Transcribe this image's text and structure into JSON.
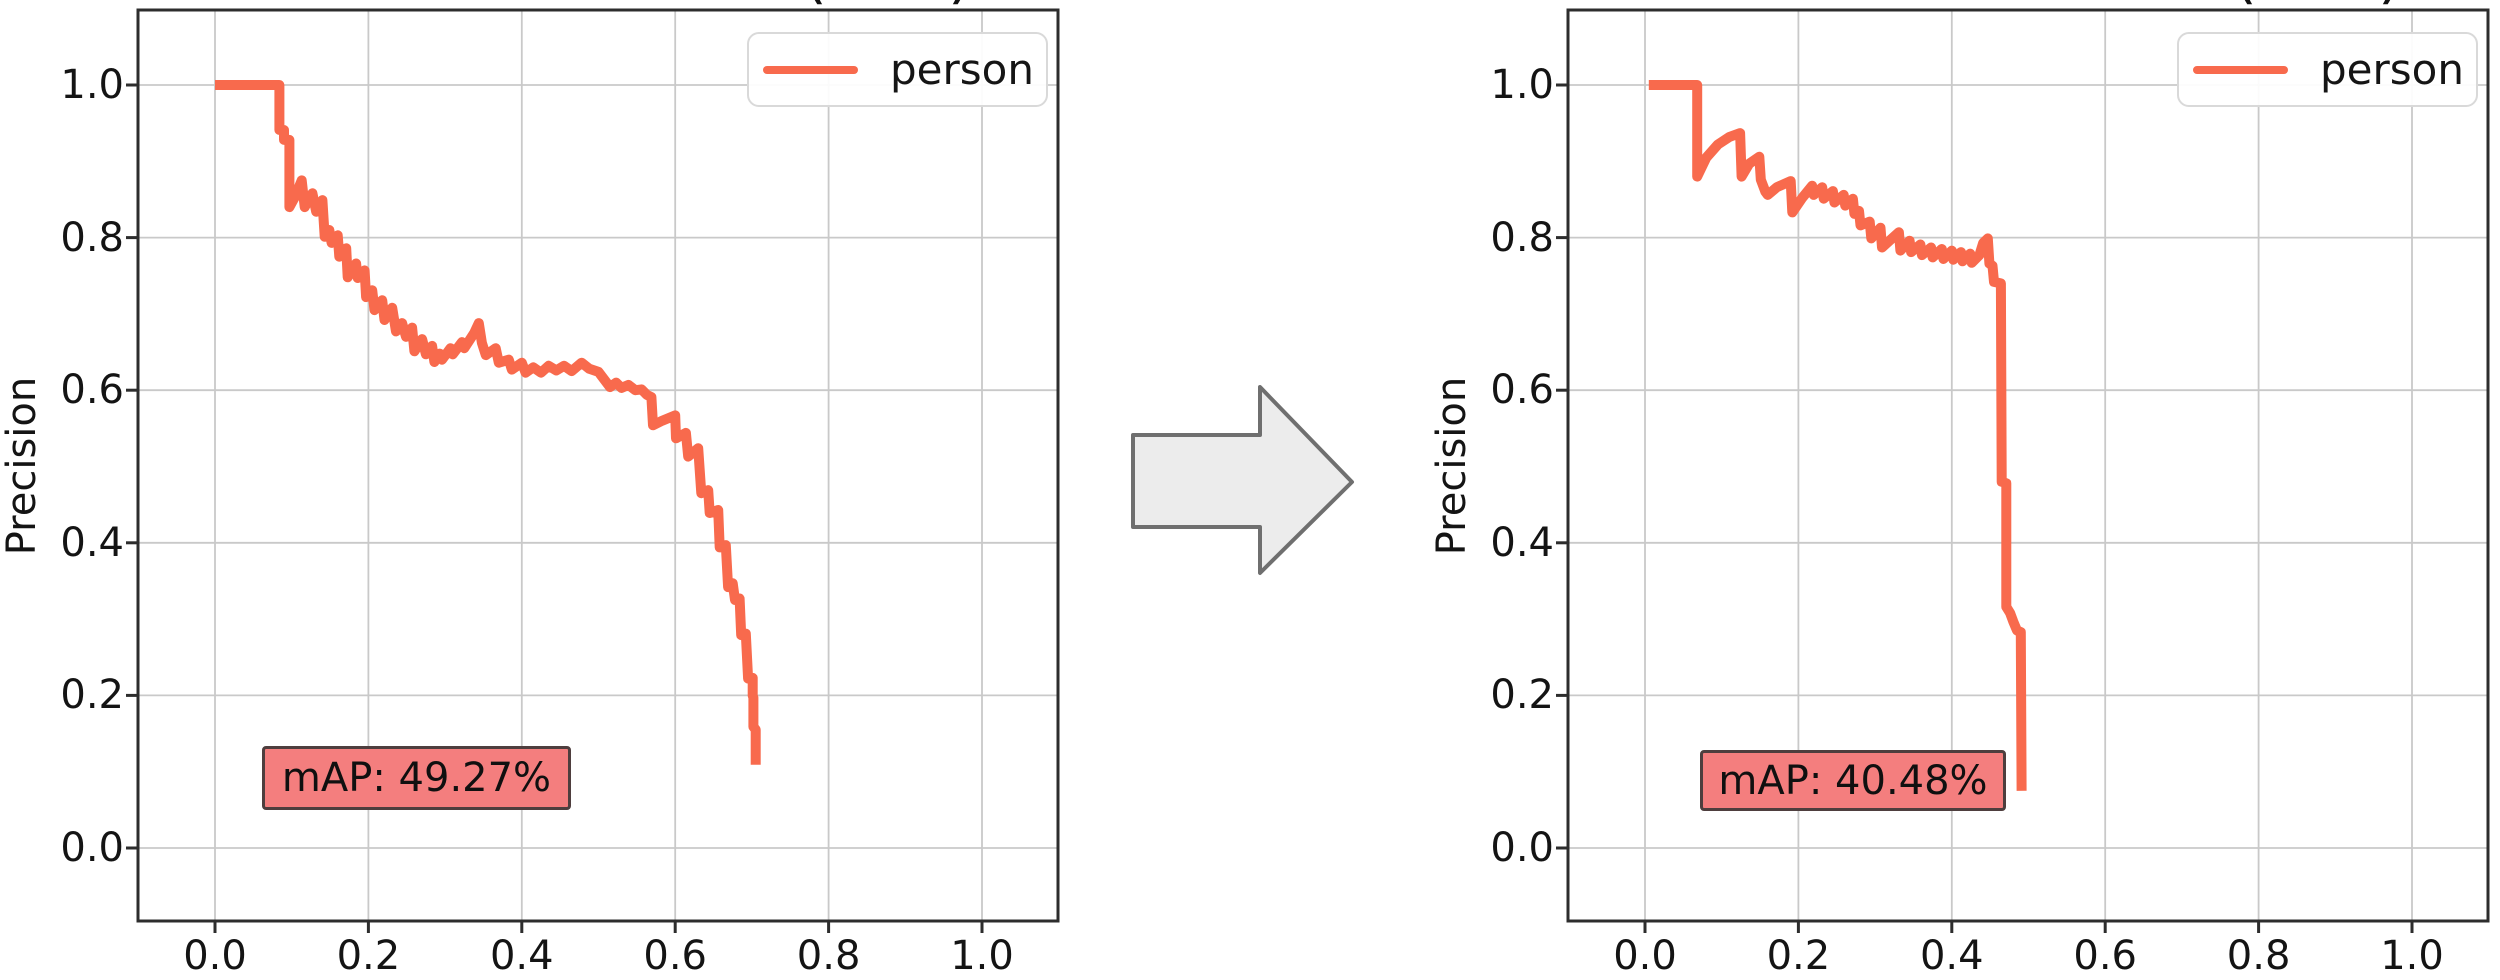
{
  "page": {
    "background": "#ffffff"
  },
  "arrow": {
    "description": "right-arrow",
    "fill": "#ececec",
    "stroke": "#6f6f6f"
  },
  "chart_data": [
    {
      "type": "line",
      "side": "left",
      "title_visible_fragments": [
        "(",
        ")"
      ],
      "xlabel": "",
      "ylabel": "Precision",
      "x_ticks": [
        "0.0",
        "0.2",
        "0.4",
        "0.6",
        "0.8",
        "1.0"
      ],
      "y_ticks": [
        "0.0",
        "0.2",
        "0.4",
        "0.6",
        "0.8",
        "1.0"
      ],
      "xlim": [
        -0.1,
        1.1
      ],
      "ylim": [
        -0.1,
        1.1
      ],
      "grid": true,
      "legend": {
        "position": "upper right",
        "entries": [
          "person"
        ]
      },
      "annotation": {
        "text": "mAP: 49.27%",
        "facecolor": "#f47e7e"
      },
      "series": [
        {
          "name": "person",
          "color": "#f86a4d",
          "points": [
            [
              0.0,
              1.0
            ],
            [
              0.084,
              1.0
            ],
            [
              0.084,
              0.941
            ],
            [
              0.09,
              0.941
            ],
            [
              0.09,
              0.928
            ],
            [
              0.097,
              0.928
            ],
            [
              0.097,
              0.84
            ],
            [
              0.104,
              0.853
            ],
            [
              0.113,
              0.875
            ],
            [
              0.117,
              0.84
            ],
            [
              0.127,
              0.858
            ],
            [
              0.132,
              0.834
            ],
            [
              0.14,
              0.849
            ],
            [
              0.143,
              0.801
            ],
            [
              0.149,
              0.81
            ],
            [
              0.152,
              0.793
            ],
            [
              0.16,
              0.803
            ],
            [
              0.162,
              0.775
            ],
            [
              0.171,
              0.786
            ],
            [
              0.173,
              0.748
            ],
            [
              0.184,
              0.766
            ],
            [
              0.186,
              0.747
            ],
            [
              0.195,
              0.757
            ],
            [
              0.197,
              0.722
            ],
            [
              0.205,
              0.731
            ],
            [
              0.208,
              0.705
            ],
            [
              0.218,
              0.718
            ],
            [
              0.221,
              0.692
            ],
            [
              0.231,
              0.708
            ],
            [
              0.236,
              0.677
            ],
            [
              0.244,
              0.688
            ],
            [
              0.249,
              0.67
            ],
            [
              0.257,
              0.682
            ],
            [
              0.26,
              0.651
            ],
            [
              0.27,
              0.667
            ],
            [
              0.275,
              0.647
            ],
            [
              0.283,
              0.658
            ],
            [
              0.286,
              0.637
            ],
            [
              0.293,
              0.648
            ],
            [
              0.296,
              0.64
            ],
            [
              0.307,
              0.655
            ],
            [
              0.31,
              0.647
            ],
            [
              0.322,
              0.663
            ],
            [
              0.325,
              0.655
            ],
            [
              0.338,
              0.675
            ],
            [
              0.344,
              0.688
            ],
            [
              0.348,
              0.662
            ],
            [
              0.353,
              0.646
            ],
            [
              0.366,
              0.655
            ],
            [
              0.37,
              0.636
            ],
            [
              0.383,
              0.64
            ],
            [
              0.387,
              0.627
            ],
            [
              0.4,
              0.636
            ],
            [
              0.405,
              0.623
            ],
            [
              0.415,
              0.63
            ],
            [
              0.425,
              0.623
            ],
            [
              0.435,
              0.632
            ],
            [
              0.445,
              0.626
            ],
            [
              0.455,
              0.632
            ],
            [
              0.465,
              0.625
            ],
            [
              0.478,
              0.636
            ],
            [
              0.488,
              0.628
            ],
            [
              0.5,
              0.624
            ],
            [
              0.515,
              0.604
            ],
            [
              0.523,
              0.61
            ],
            [
              0.53,
              0.603
            ],
            [
              0.539,
              0.607
            ],
            [
              0.548,
              0.6
            ],
            [
              0.556,
              0.601
            ],
            [
              0.563,
              0.594
            ],
            [
              0.569,
              0.591
            ],
            [
              0.571,
              0.554
            ],
            [
              0.583,
              0.56
            ],
            [
              0.6,
              0.567
            ],
            [
              0.601,
              0.537
            ],
            [
              0.614,
              0.544
            ],
            [
              0.617,
              0.513
            ],
            [
              0.63,
              0.524
            ],
            [
              0.634,
              0.465
            ],
            [
              0.643,
              0.469
            ],
            [
              0.645,
              0.439
            ],
            [
              0.656,
              0.443
            ],
            [
              0.658,
              0.394
            ],
            [
              0.666,
              0.397
            ],
            [
              0.669,
              0.342
            ],
            [
              0.675,
              0.347
            ],
            [
              0.678,
              0.325
            ],
            [
              0.684,
              0.327
            ],
            [
              0.686,
              0.279
            ],
            [
              0.692,
              0.281
            ],
            [
              0.695,
              0.222
            ],
            [
              0.701,
              0.223
            ],
            [
              0.701,
              0.2
            ],
            [
              0.702,
              0.197
            ],
            [
              0.702,
              0.159
            ],
            [
              0.705,
              0.155
            ],
            [
              0.705,
              0.109
            ]
          ]
        }
      ]
    },
    {
      "type": "line",
      "side": "right",
      "title_visible_fragments": [
        "(",
        ")"
      ],
      "xlabel": "",
      "ylabel": "Precision",
      "x_ticks": [
        "0.0",
        "0.2",
        "0.4",
        "0.6",
        "0.8",
        "1.0"
      ],
      "y_ticks": [
        "0.0",
        "0.2",
        "0.4",
        "0.6",
        "0.8",
        "1.0"
      ],
      "xlim": [
        -0.1,
        1.1
      ],
      "ylim": [
        -0.1,
        1.1
      ],
      "grid": true,
      "legend": {
        "position": "upper right",
        "entries": [
          "person"
        ]
      },
      "annotation": {
        "text": "mAP: 40.48%",
        "facecolor": "#f47e7e"
      },
      "series": [
        {
          "name": "person",
          "color": "#f86a4d",
          "points": [
            [
              0.005,
              1.0
            ],
            [
              0.068,
              1.0
            ],
            [
              0.068,
              0.88
            ],
            [
              0.08,
              0.905
            ],
            [
              0.095,
              0.922
            ],
            [
              0.11,
              0.932
            ],
            [
              0.124,
              0.937
            ],
            [
              0.126,
              0.88
            ],
            [
              0.136,
              0.897
            ],
            [
              0.149,
              0.906
            ],
            [
              0.151,
              0.876
            ],
            [
              0.157,
              0.86
            ],
            [
              0.16,
              0.856
            ],
            [
              0.172,
              0.866
            ],
            [
              0.19,
              0.874
            ],
            [
              0.192,
              0.833
            ],
            [
              0.205,
              0.852
            ],
            [
              0.218,
              0.868
            ],
            [
              0.22,
              0.856
            ],
            [
              0.231,
              0.866
            ],
            [
              0.233,
              0.851
            ],
            [
              0.245,
              0.861
            ],
            [
              0.247,
              0.846
            ],
            [
              0.259,
              0.856
            ],
            [
              0.261,
              0.842
            ],
            [
              0.271,
              0.851
            ],
            [
              0.273,
              0.831
            ],
            [
              0.279,
              0.835
            ],
            [
              0.281,
              0.816
            ],
            [
              0.293,
              0.821
            ],
            [
              0.295,
              0.799
            ],
            [
              0.307,
              0.813
            ],
            [
              0.309,
              0.787
            ],
            [
              0.322,
              0.799
            ],
            [
              0.331,
              0.807
            ],
            [
              0.333,
              0.783
            ],
            [
              0.345,
              0.796
            ],
            [
              0.347,
              0.781
            ],
            [
              0.359,
              0.791
            ],
            [
              0.361,
              0.777
            ],
            [
              0.373,
              0.787
            ],
            [
              0.375,
              0.774
            ],
            [
              0.387,
              0.785
            ],
            [
              0.389,
              0.772
            ],
            [
              0.4,
              0.783
            ],
            [
              0.402,
              0.771
            ],
            [
              0.412,
              0.781
            ],
            [
              0.414,
              0.769
            ],
            [
              0.424,
              0.779
            ],
            [
              0.426,
              0.767
            ],
            [
              0.436,
              0.777
            ],
            [
              0.441,
              0.793
            ],
            [
              0.447,
              0.799
            ],
            [
              0.449,
              0.766
            ],
            [
              0.453,
              0.763
            ],
            [
              0.455,
              0.742
            ],
            [
              0.464,
              0.74
            ],
            [
              0.465,
              0.48
            ],
            [
              0.471,
              0.478
            ],
            [
              0.471,
              0.316
            ],
            [
              0.476,
              0.308
            ],
            [
              0.48,
              0.297
            ],
            [
              0.485,
              0.285
            ],
            [
              0.49,
              0.283
            ],
            [
              0.491,
              0.075
            ]
          ]
        }
      ]
    }
  ]
}
